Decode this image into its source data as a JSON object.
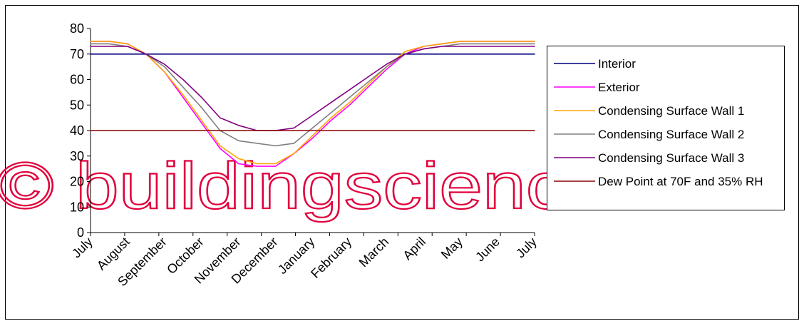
{
  "chart_data": {
    "type": "line",
    "title": "",
    "xlabel": "",
    "ylabel": "",
    "ylim": [
      0,
      80
    ],
    "y_ticks": [
      0,
      10,
      20,
      30,
      40,
      50,
      60,
      70,
      80
    ],
    "grid": false,
    "legend_position": "right",
    "categories": [
      "July",
      "August",
      "September",
      "October",
      "November",
      "December",
      "January",
      "February",
      "March",
      "April",
      "May",
      "June",
      "July"
    ],
    "x_min": 0,
    "x_max": 12,
    "x": [
      0,
      0.5,
      1,
      1.5,
      2,
      2.5,
      3,
      3.5,
      4,
      4.5,
      5,
      5.5,
      6,
      6.5,
      7,
      7.5,
      8,
      8.5,
      9,
      9.5,
      10,
      10.5,
      11,
      11.5,
      12
    ],
    "series": [
      {
        "name": "Interior",
        "color": "#000080",
        "values": [
          70,
          70,
          70,
          70,
          70,
          70,
          70,
          70,
          70,
          70,
          70,
          70,
          70,
          70,
          70,
          70,
          70,
          70,
          70,
          70,
          70,
          70,
          70,
          70,
          70
        ]
      },
      {
        "name": "Exterior",
        "color": "#FF00FF",
        "values": [
          75,
          75,
          74,
          70,
          63,
          53,
          43,
          33,
          27,
          26,
          26,
          31,
          37,
          44,
          50,
          57,
          64,
          70,
          73,
          74,
          75,
          75,
          75,
          75,
          75
        ]
      },
      {
        "name": "Condensing Surface Wall 1",
        "color": "#FFA500",
        "values": [
          75,
          75,
          74,
          70,
          63,
          54,
          44,
          34,
          29,
          27,
          27,
          31,
          38,
          45,
          51,
          58,
          65,
          71,
          73,
          74,
          75,
          75,
          75,
          75,
          75
        ]
      },
      {
        "name": "Condensing Surface Wall 2",
        "color": "#808080",
        "values": [
          74,
          74,
          73,
          70,
          65,
          57,
          49,
          40,
          36,
          35,
          34,
          35,
          41,
          47,
          53,
          59,
          65,
          70,
          72,
          73,
          74,
          74,
          74,
          74,
          74
        ]
      },
      {
        "name": "Condensing Surface Wall 3",
        "color": "#800080",
        "values": [
          73,
          73,
          73,
          70,
          66,
          60,
          53,
          45,
          42,
          40,
          40,
          41,
          46,
          51,
          56,
          61,
          66,
          70,
          72,
          73,
          73,
          73,
          73,
          73,
          73
        ]
      },
      {
        "name": "Dew Point at 70F and 35% RH",
        "color": "#8B0000",
        "values": [
          40,
          40,
          40,
          40,
          40,
          40,
          40,
          40,
          40,
          40,
          40,
          40,
          40,
          40,
          40,
          40,
          40,
          40,
          40,
          40,
          40,
          40,
          40,
          40,
          40
        ]
      }
    ]
  },
  "watermark": {
    "text": "© buildingscience.com",
    "color": "#E0003C"
  }
}
